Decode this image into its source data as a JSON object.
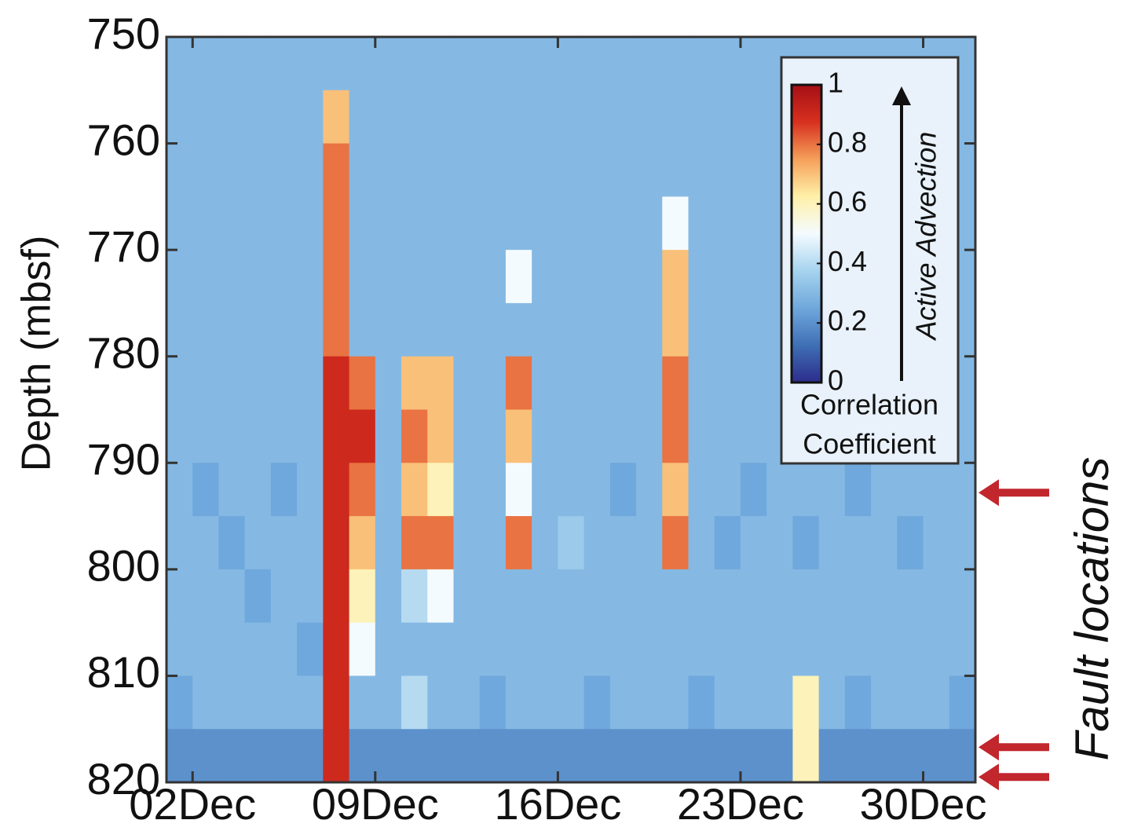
{
  "chart_data": {
    "type": "heatmap",
    "ylabel": "Depth (mbsf)",
    "xlim": [
      1,
      32
    ],
    "xticks": [
      {
        "value": 2,
        "label": "02Dec"
      },
      {
        "value": 9,
        "label": "09Dec"
      },
      {
        "value": 16,
        "label": "16Dec"
      },
      {
        "value": 23,
        "label": "23Dec"
      },
      {
        "value": 30,
        "label": "30Dec"
      }
    ],
    "ylim": [
      750,
      820
    ],
    "yticks": [
      750,
      760,
      770,
      780,
      790,
      800,
      810,
      820
    ],
    "x_edges": [
      1,
      2,
      3,
      4,
      5,
      6,
      7,
      8,
      9,
      10,
      11,
      12,
      13,
      14,
      15,
      16,
      17,
      18,
      19,
      20,
      21,
      22,
      23,
      24,
      25,
      26,
      27,
      28,
      29,
      30,
      31,
      32
    ],
    "y_edges": [
      750,
      755,
      760,
      765,
      770,
      775,
      780,
      785,
      790,
      795,
      800,
      805,
      810,
      815,
      820
    ],
    "z": [
      [
        0.3,
        0.3,
        0.3,
        0.3,
        0.3,
        0.3,
        0.3,
        0.3,
        0.3,
        0.3,
        0.3,
        0.3,
        0.3,
        0.3,
        0.3,
        0.3,
        0.3,
        0.3,
        0.3,
        0.3,
        0.3,
        0.3,
        0.3,
        0.3,
        0.3,
        0.3,
        0.3,
        0.3,
        0.3,
        0.3,
        0.3
      ],
      [
        0.3,
        0.3,
        0.3,
        0.3,
        0.3,
        0.3,
        0.7,
        0.3,
        0.3,
        0.3,
        0.3,
        0.3,
        0.3,
        0.3,
        0.3,
        0.3,
        0.3,
        0.3,
        0.3,
        0.3,
        0.3,
        0.3,
        0.3,
        0.3,
        0.3,
        0.3,
        0.3,
        0.3,
        0.3,
        0.3,
        0.3
      ],
      [
        0.3,
        0.3,
        0.3,
        0.3,
        0.3,
        0.3,
        0.8,
        0.3,
        0.3,
        0.3,
        0.3,
        0.3,
        0.3,
        0.3,
        0.3,
        0.3,
        0.3,
        0.3,
        0.3,
        0.3,
        0.3,
        0.3,
        0.3,
        0.3,
        0.3,
        0.3,
        0.3,
        0.3,
        0.3,
        0.3,
        0.3
      ],
      [
        0.3,
        0.3,
        0.3,
        0.3,
        0.3,
        0.3,
        0.8,
        0.3,
        0.3,
        0.3,
        0.3,
        0.3,
        0.3,
        0.3,
        0.3,
        0.3,
        0.3,
        0.3,
        0.3,
        0.5,
        0.3,
        0.3,
        0.3,
        0.3,
        0.3,
        0.3,
        0.3,
        0.3,
        0.3,
        0.3,
        0.3
      ],
      [
        0.3,
        0.3,
        0.3,
        0.3,
        0.3,
        0.3,
        0.8,
        0.3,
        0.3,
        0.3,
        0.3,
        0.3,
        0.3,
        0.5,
        0.3,
        0.3,
        0.3,
        0.3,
        0.3,
        0.7,
        0.3,
        0.3,
        0.3,
        0.3,
        0.3,
        0.3,
        0.3,
        0.3,
        0.3,
        0.3,
        0.3
      ],
      [
        0.3,
        0.3,
        0.3,
        0.3,
        0.3,
        0.3,
        0.8,
        0.3,
        0.3,
        0.3,
        0.3,
        0.3,
        0.3,
        0.3,
        0.3,
        0.3,
        0.3,
        0.3,
        0.3,
        0.7,
        0.3,
        0.3,
        0.3,
        0.3,
        0.3,
        0.3,
        0.3,
        0.3,
        0.3,
        0.3,
        0.3
      ],
      [
        0.3,
        0.3,
        0.3,
        0.3,
        0.3,
        0.3,
        0.9,
        0.8,
        0.3,
        0.7,
        0.7,
        0.3,
        0.3,
        0.8,
        0.3,
        0.3,
        0.3,
        0.3,
        0.3,
        0.8,
        0.3,
        0.3,
        0.3,
        0.3,
        0.3,
        0.3,
        0.3,
        0.3,
        0.3,
        0.3,
        0.3
      ],
      [
        0.3,
        0.3,
        0.3,
        0.3,
        0.3,
        0.3,
        0.9,
        0.9,
        0.3,
        0.8,
        0.7,
        0.3,
        0.3,
        0.7,
        0.3,
        0.3,
        0.3,
        0.3,
        0.3,
        0.8,
        0.3,
        0.3,
        0.3,
        0.3,
        0.3,
        0.3,
        0.3,
        0.3,
        0.3,
        0.3,
        0.3
      ],
      [
        0.3,
        0.25,
        0.3,
        0.3,
        0.25,
        0.3,
        0.9,
        0.8,
        0.3,
        0.7,
        0.6,
        0.3,
        0.3,
        0.5,
        0.3,
        0.3,
        0.3,
        0.25,
        0.3,
        0.7,
        0.3,
        0.3,
        0.25,
        0.3,
        0.3,
        0.3,
        0.25,
        0.3,
        0.3,
        0.3,
        0.3
      ],
      [
        0.3,
        0.3,
        0.25,
        0.3,
        0.3,
        0.3,
        0.9,
        0.7,
        0.3,
        0.8,
        0.8,
        0.3,
        0.3,
        0.8,
        0.3,
        0.35,
        0.3,
        0.3,
        0.3,
        0.8,
        0.3,
        0.25,
        0.3,
        0.3,
        0.25,
        0.3,
        0.3,
        0.3,
        0.25,
        0.3,
        0.3
      ],
      [
        0.3,
        0.3,
        0.3,
        0.25,
        0.3,
        0.3,
        0.9,
        0.6,
        0.3,
        0.4,
        0.5,
        0.3,
        0.3,
        0.3,
        0.3,
        0.3,
        0.3,
        0.3,
        0.3,
        0.3,
        0.3,
        0.3,
        0.3,
        0.3,
        0.3,
        0.3,
        0.3,
        0.3,
        0.3,
        0.3,
        0.3
      ],
      [
        0.3,
        0.3,
        0.3,
        0.3,
        0.3,
        0.25,
        0.9,
        0.5,
        0.3,
        0.3,
        0.3,
        0.3,
        0.3,
        0.3,
        0.3,
        0.3,
        0.3,
        0.3,
        0.3,
        0.3,
        0.3,
        0.3,
        0.3,
        0.3,
        0.3,
        0.3,
        0.3,
        0.3,
        0.3,
        0.3,
        0.3
      ],
      [
        0.25,
        0.3,
        0.3,
        0.3,
        0.3,
        0.3,
        0.9,
        0.3,
        0.3,
        0.4,
        0.3,
        0.3,
        0.25,
        0.3,
        0.3,
        0.3,
        0.25,
        0.3,
        0.3,
        0.3,
        0.25,
        0.3,
        0.3,
        0.3,
        0.6,
        0.3,
        0.25,
        0.3,
        0.3,
        0.3,
        0.25
      ],
      [
        0.2,
        0.2,
        0.2,
        0.2,
        0.2,
        0.2,
        0.9,
        0.2,
        0.2,
        0.2,
        0.2,
        0.2,
        0.2,
        0.2,
        0.2,
        0.2,
        0.2,
        0.2,
        0.2,
        0.2,
        0.2,
        0.2,
        0.2,
        0.2,
        0.6,
        0.2,
        0.2,
        0.2,
        0.2,
        0.2,
        0.2
      ]
    ],
    "clim": [
      0,
      1
    ],
    "colormap": [
      "#2c2d8c",
      "#3f6fb5",
      "#6fa8dc",
      "#a6d3ee",
      "#f4fbff",
      "#fff0a8",
      "#f5a05a",
      "#d7301f",
      "#a50f15"
    ],
    "colorbar_ticks": [
      0,
      0.2,
      0.4,
      0.6,
      0.8,
      1
    ],
    "colorbar_label": [
      "Correlation",
      "Coefficient"
    ],
    "arrow_label": "Active Advection",
    "fault_label": "Fault locations",
    "fault_depths": [
      792.8,
      816.7,
      819.5
    ],
    "fault_color": "#c1272d"
  }
}
